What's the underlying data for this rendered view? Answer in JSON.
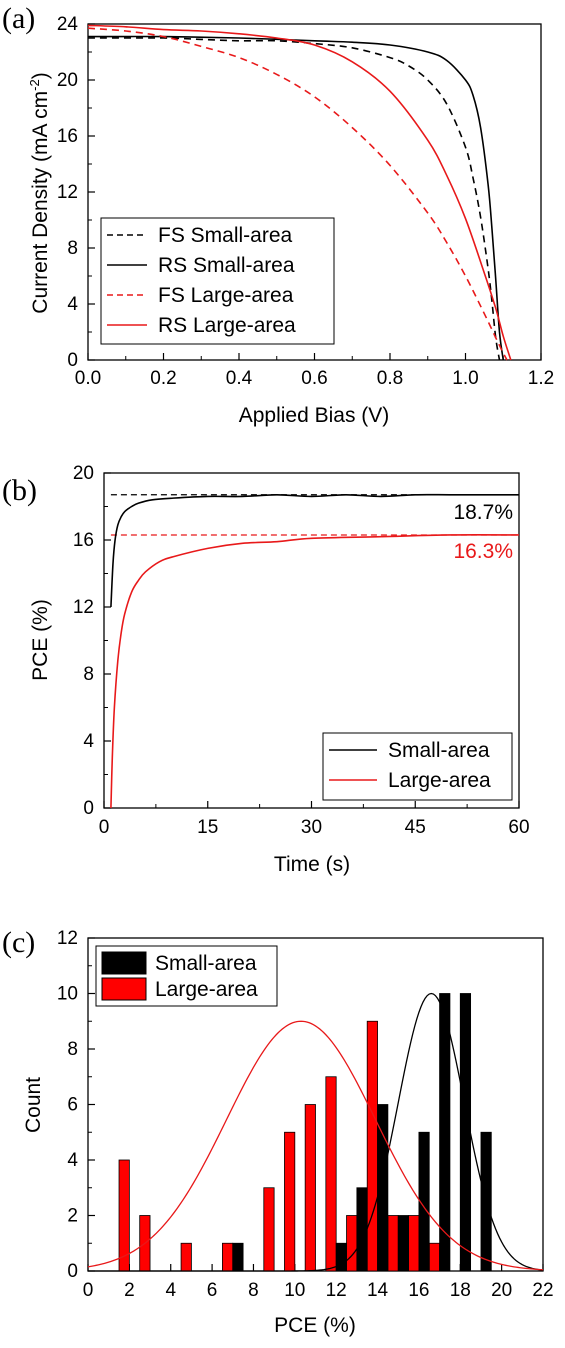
{
  "chart_data": [
    {
      "panel": "(a)",
      "type": "line",
      "xlabel": "Applied Bias (V)",
      "ylabel": "Current Density (mA cm",
      "ylabel_sup": "-2",
      "ylabel_tail": ")",
      "xlim": [
        0.0,
        1.2
      ],
      "ylim": [
        0,
        24
      ],
      "xticks": [
        "0.0",
        "0.2",
        "0.4",
        "0.6",
        "0.8",
        "1.0",
        "1.2"
      ],
      "yticks": [
        "0",
        "4",
        "8",
        "12",
        "16",
        "20",
        "24"
      ],
      "legend_position": "bottom-left",
      "series": [
        {
          "name": "FS Small-area",
          "color": "#000000",
          "dash": "dashed",
          "x": [
            0.0,
            0.2,
            0.3,
            0.4,
            0.5,
            0.6,
            0.7,
            0.8,
            0.85,
            0.9,
            0.95,
            1.0,
            1.02,
            1.04,
            1.06,
            1.07,
            1.08,
            1.09
          ],
          "y": [
            23.0,
            23.0,
            22.9,
            22.8,
            22.8,
            22.6,
            22.3,
            21.6,
            21.0,
            20.0,
            18.3,
            15.2,
            13.0,
            10.2,
            6.5,
            4.2,
            1.6,
            0
          ]
        },
        {
          "name": "RS Small-area",
          "color": "#000000",
          "dash": "solid",
          "x": [
            0.0,
            0.2,
            0.4,
            0.6,
            0.7,
            0.8,
            0.9,
            0.95,
            1.0,
            1.02,
            1.04,
            1.06,
            1.07,
            1.08,
            1.09,
            1.1
          ],
          "y": [
            23.1,
            23.1,
            23.0,
            22.8,
            22.7,
            22.5,
            22.0,
            21.4,
            20.0,
            18.9,
            16.6,
            12.5,
            9.4,
            5.8,
            2.0,
            0
          ]
        },
        {
          "name": "FS Large-area",
          "color": "#e8191a",
          "dash": "dashed",
          "x": [
            0.0,
            0.1,
            0.2,
            0.3,
            0.4,
            0.5,
            0.6,
            0.7,
            0.8,
            0.9,
            0.95,
            1.0,
            1.05,
            1.08,
            1.1,
            1.11
          ],
          "y": [
            23.7,
            23.5,
            23.1,
            22.4,
            21.6,
            20.4,
            18.8,
            16.6,
            13.9,
            10.5,
            8.4,
            6.0,
            3.3,
            1.6,
            0.5,
            0
          ]
        },
        {
          "name": "RS Large-area",
          "color": "#e8191a",
          "dash": "solid",
          "x": [
            0.0,
            0.1,
            0.2,
            0.3,
            0.4,
            0.5,
            0.6,
            0.7,
            0.8,
            0.9,
            0.95,
            1.0,
            1.05,
            1.08,
            1.1,
            1.12
          ],
          "y": [
            23.9,
            23.8,
            23.6,
            23.5,
            23.3,
            23.0,
            22.5,
            21.3,
            19.2,
            15.7,
            13.2,
            10.1,
            6.2,
            3.7,
            1.7,
            0
          ]
        }
      ]
    },
    {
      "panel": "(b)",
      "type": "line",
      "xlabel": "Time (s)",
      "ylabel": "PCE (%)",
      "xlim": [
        0,
        60
      ],
      "ylim": [
        0,
        20
      ],
      "xticks": [
        "0",
        "15",
        "30",
        "45",
        "60"
      ],
      "yticks": [
        "0",
        "4",
        "8",
        "12",
        "16",
        "20"
      ],
      "legend_position": "bottom-right",
      "reference_lines": [
        {
          "y": 18.7,
          "color": "#000000",
          "dash": "dashed",
          "label": "18.7%"
        },
        {
          "y": 16.3,
          "color": "#e8191a",
          "dash": "dashed",
          "label": "16.3%"
        }
      ],
      "series": [
        {
          "name": "Small-area",
          "color": "#000000",
          "x": [
            1.0,
            1.3,
            1.6,
            2.0,
            2.5,
            3.0,
            4.0,
            5.0,
            7.0,
            10.0,
            15.0,
            20.0,
            25.0,
            30.0,
            35.0,
            40.0,
            45.0,
            50.0,
            55.0,
            60.0
          ],
          "y": [
            12.0,
            14.6,
            16.0,
            16.9,
            17.4,
            17.7,
            18.0,
            18.2,
            18.4,
            18.5,
            18.6,
            18.6,
            18.7,
            18.6,
            18.7,
            18.6,
            18.7,
            18.7,
            18.7,
            18.7
          ]
        },
        {
          "name": "Large-area",
          "color": "#e8191a",
          "x": [
            1.0,
            1.2,
            1.5,
            2.0,
            2.5,
            3.0,
            4.0,
            5.0,
            6.0,
            8.0,
            10.0,
            15.0,
            20.0,
            25.0,
            30.0,
            40.0,
            50.0,
            60.0
          ],
          "y": [
            0.0,
            3.0,
            6.0,
            8.8,
            10.5,
            11.6,
            12.9,
            13.6,
            14.1,
            14.7,
            15.0,
            15.5,
            15.8,
            15.9,
            16.1,
            16.2,
            16.3,
            16.3
          ]
        }
      ]
    },
    {
      "panel": "(c)",
      "type": "bar",
      "xlabel": "PCE (%)",
      "ylabel": "Count",
      "xlim": [
        0,
        22
      ],
      "ylim": [
        0,
        12
      ],
      "xticks": [
        "0",
        "2",
        "4",
        "6",
        "8",
        "10",
        "12",
        "14",
        "16",
        "18",
        "20",
        "22"
      ],
      "yticks": [
        "0",
        "2",
        "4",
        "6",
        "8",
        "10",
        "12"
      ],
      "legend_position": "top-left",
      "series": [
        {
          "name": "Small-area",
          "color": "#000000",
          "x": [
            7.25,
            12.25,
            13.25,
            14.25,
            15.25,
            16.25,
            17.25,
            18.25,
            19.25
          ],
          "values": [
            1,
            1,
            3,
            6,
            2,
            5,
            10,
            10,
            5
          ],
          "fit": {
            "type": "gaussian",
            "center": 16.6,
            "sigma": 1.6,
            "peak": 10
          }
        },
        {
          "name": "Large-area",
          "color": "#ff0000",
          "x": [
            1.75,
            2.75,
            4.75,
            6.75,
            8.75,
            9.75,
            10.75,
            11.75,
            12.75,
            13.75,
            14.75,
            15.75,
            16.75
          ],
          "values": [
            4,
            2,
            1,
            1,
            3,
            5,
            6,
            7,
            2,
            9,
            2,
            2,
            1
          ],
          "fit": {
            "type": "gaussian",
            "center": 10.3,
            "sigma": 3.6,
            "peak": 9
          }
        }
      ]
    }
  ]
}
